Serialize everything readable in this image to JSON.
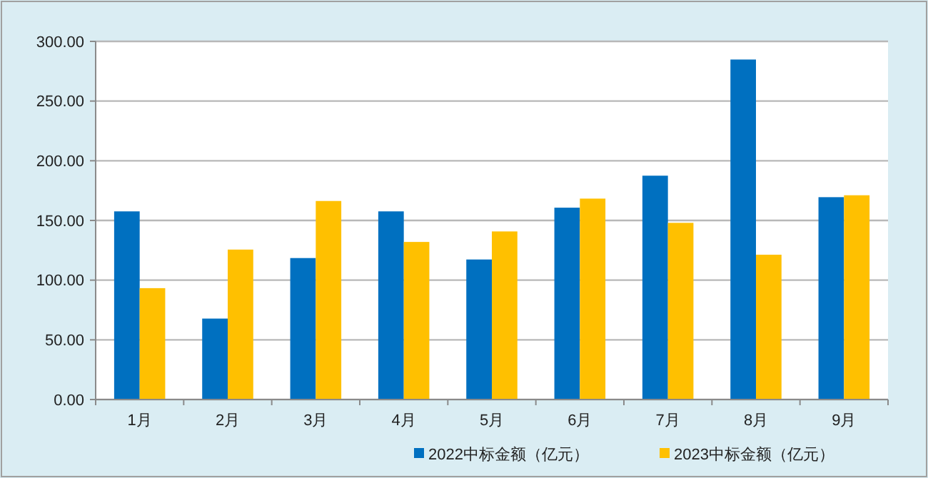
{
  "chart_data": {
    "type": "bar",
    "categories": [
      "1月",
      "2月",
      "3月",
      "4月",
      "5月",
      "6月",
      "7月",
      "8月",
      "9月"
    ],
    "series": [
      {
        "name": "2022中标金额（亿元）",
        "color": "#0070c0",
        "values": [
          157.6,
          67.8,
          118.5,
          157.6,
          117.3,
          160.7,
          187.5,
          284.8,
          169.5
        ]
      },
      {
        "name": "2023中标金额（亿元）",
        "color": "#ffc000",
        "values": [
          93.3,
          125.6,
          166.3,
          132,
          140.8,
          168.3,
          148,
          121.3,
          171.1
        ]
      }
    ],
    "ylim": [
      0,
      300
    ],
    "yticks": [
      {
        "value": 0,
        "label": "0.00"
      },
      {
        "value": 50,
        "label": "50.00"
      },
      {
        "value": 100,
        "label": "100.00"
      },
      {
        "value": 150,
        "label": "150.00"
      },
      {
        "value": 200,
        "label": "200.00"
      },
      {
        "value": 250,
        "label": "250.00"
      },
      {
        "value": 300,
        "label": "300.00"
      }
    ],
    "grid": "y",
    "legend": "bottom"
  }
}
